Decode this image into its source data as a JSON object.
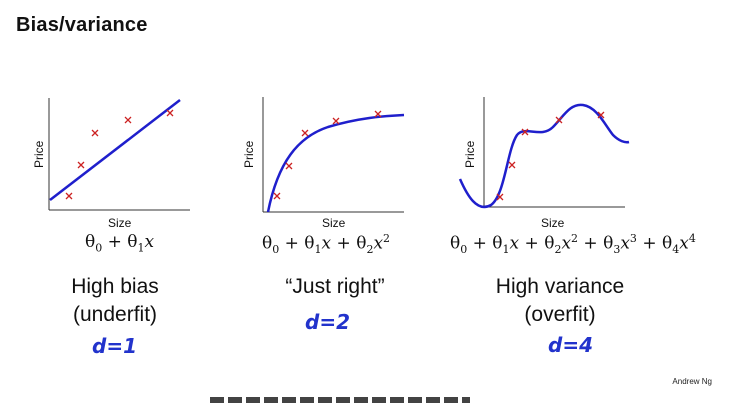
{
  "title": "Bias/variance",
  "credit": "Andrew Ng",
  "panels": [
    {
      "ylabel": "Price",
      "xlabel": "Size",
      "formula": "θ0 + θ1x",
      "caption_line1": "High bias",
      "caption_line2": "(underfit)",
      "handnote": "d=1"
    },
    {
      "ylabel": "Price",
      "xlabel": "Size",
      "formula": "θ0 + θ1x + θ2x²",
      "caption_line1": "“Just right”",
      "caption_line2": "",
      "handnote": "d=2"
    },
    {
      "ylabel": "Price",
      "xlabel": "Size",
      "formula": "θ0 + θ1x + θ2x² + θ3x³ + θ4x⁴",
      "caption_line1": "High variance",
      "caption_line2": "(overfit)",
      "handnote": "d=4"
    }
  ],
  "colors": {
    "fit_curve": "#1f1fcc",
    "data_marker": "#cc2222",
    "axes": "#333333",
    "handwriting": "#2233cc"
  }
}
